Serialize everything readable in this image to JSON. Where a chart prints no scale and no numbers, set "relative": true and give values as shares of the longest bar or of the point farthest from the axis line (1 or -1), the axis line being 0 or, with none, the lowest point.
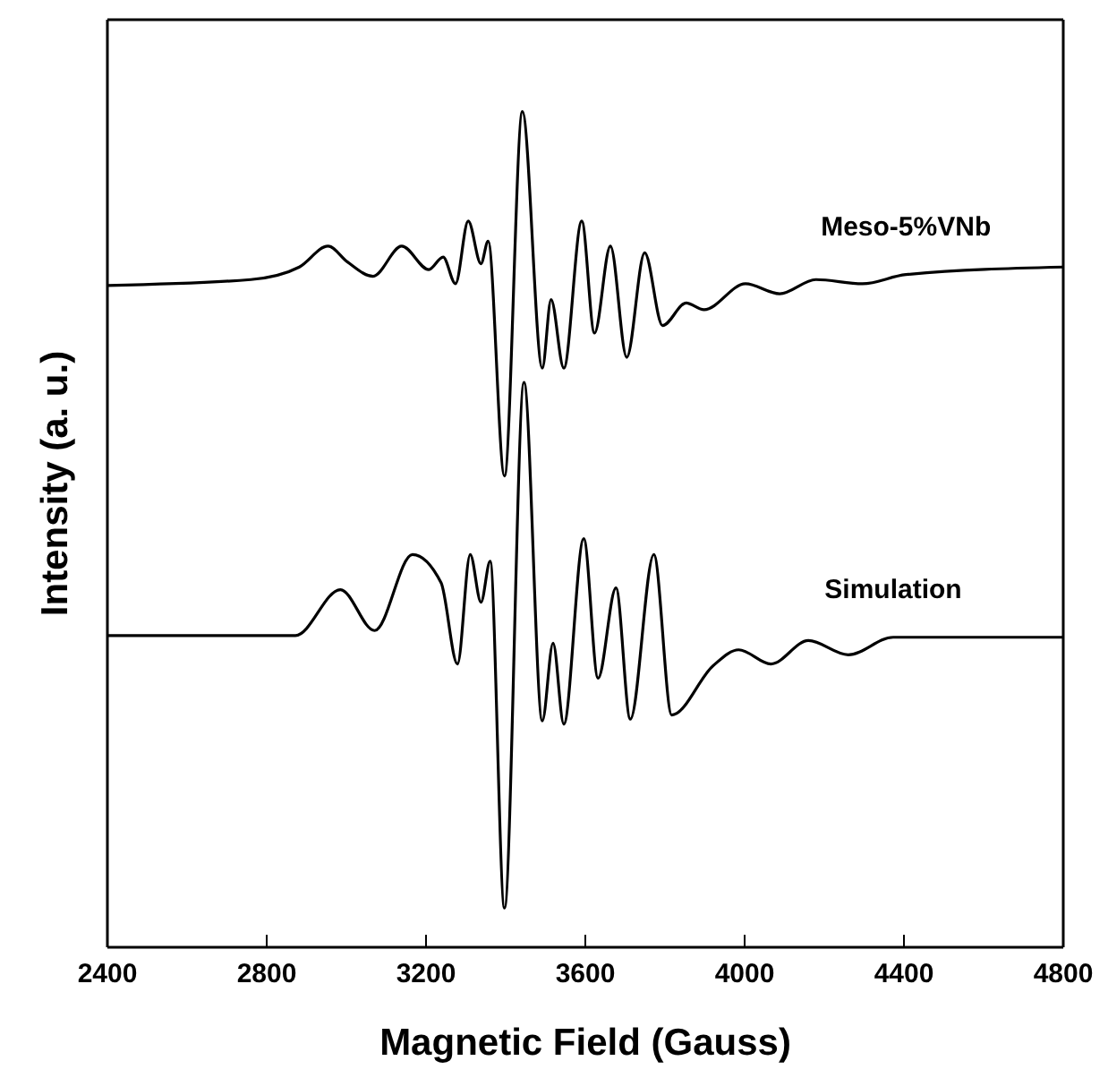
{
  "chart_data": {
    "type": "line",
    "relative": true,
    "xlabel": "Magnetic Field (Gauss)",
    "ylabel": "Intensity (a. u.)",
    "xlim": [
      2400,
      4800
    ],
    "xticks": [
      2400,
      2800,
      3200,
      3600,
      4000,
      4400,
      4800
    ],
    "legend": false,
    "marker": "none",
    "line_style": "solid",
    "tick_labels": "x",
    "series": [
      {
        "name": "Meso-5%VNb",
        "color": "#000000",
        "x": [
          2400,
          2760,
          2882,
          2954,
          3003,
          3067,
          3139,
          3207,
          3243,
          3274,
          3306,
          3338,
          3356,
          3397,
          3442,
          3492,
          3514,
          3546,
          3591,
          3623,
          3663,
          3704,
          3749,
          3794,
          3853,
          3898,
          4002,
          4088,
          4179,
          4296,
          4405,
          4800
        ],
        "values": [
          0.792,
          0.799,
          0.814,
          0.839,
          0.82,
          0.803,
          0.839,
          0.811,
          0.826,
          0.794,
          0.869,
          0.818,
          0.845,
          0.564,
          1.0,
          0.693,
          0.775,
          0.693,
          0.869,
          0.735,
          0.839,
          0.706,
          0.831,
          0.744,
          0.771,
          0.763,
          0.794,
          0.782,
          0.799,
          0.794,
          0.805,
          0.814
        ]
      },
      {
        "name": "Simulation",
        "color": "#000000",
        "x": [
          2400,
          2872,
          2985,
          3071,
          3166,
          3238,
          3279,
          3311,
          3338,
          3361,
          3397,
          3446,
          3492,
          3519,
          3546,
          3596,
          3632,
          3677,
          3713,
          3772,
          3817,
          3921,
          3985,
          4066,
          4160,
          4260,
          4373,
          4800
        ],
        "values": [
          0.373,
          0.373,
          0.428,
          0.379,
          0.47,
          0.436,
          0.339,
          0.47,
          0.413,
          0.462,
          0.047,
          0.676,
          0.271,
          0.364,
          0.267,
          0.489,
          0.322,
          0.43,
          0.273,
          0.47,
          0.278,
          0.337,
          0.356,
          0.339,
          0.367,
          0.35,
          0.371,
          0.371
        ]
      }
    ]
  }
}
